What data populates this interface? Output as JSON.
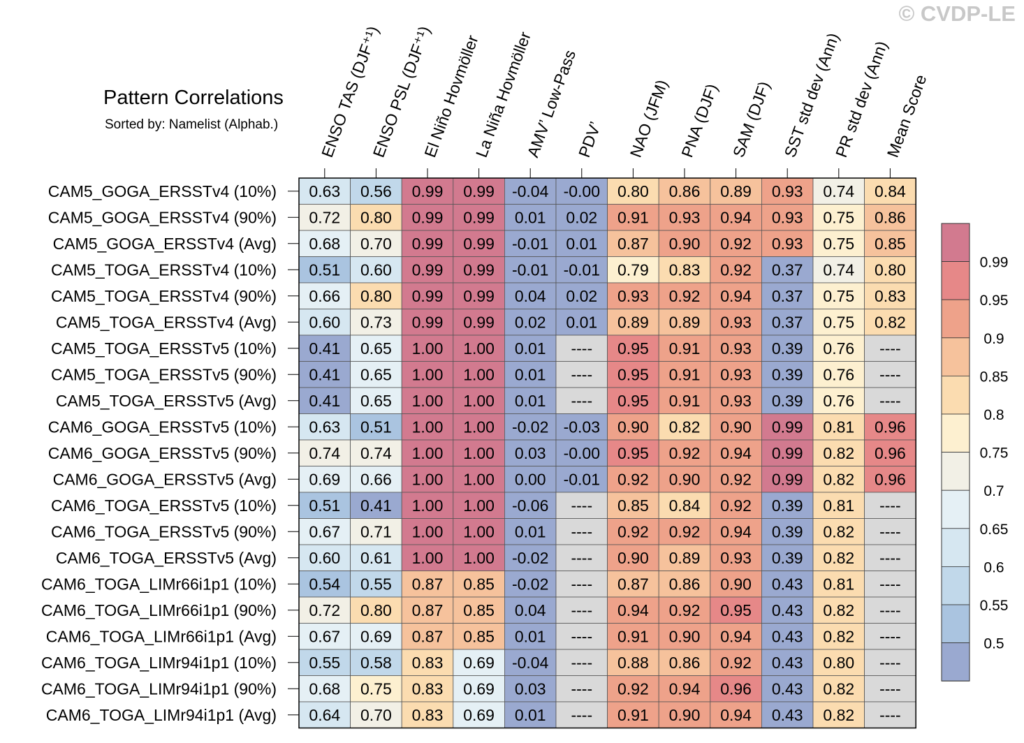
{
  "watermark": "© CVDP-LE",
  "chart_data": {
    "type": "heatmap",
    "title": "Pattern Correlations",
    "subtitle": "Sorted by: Namelist (Alphab.)",
    "columns": [
      "ENSO TAS (DJF⁺¹)",
      "ENSO PSL (DJF⁺¹)",
      "El Niño Hovmöller",
      "La Niña Hovmöller",
      "AMV’ Low-Pass",
      "PDV’",
      "NAO (JFM)",
      "PNA (DJF)",
      "SAM (DJF)",
      "SST std dev (Ann)",
      "PR std dev (Ann)",
      "Mean Score"
    ],
    "rows": [
      {
        "label": "CAM5_GOGA_ERSSTv4 (10%)",
        "values": [
          "0.63",
          "0.56",
          "0.99",
          "0.99",
          "-0.04",
          "-0.00",
          "0.80",
          "0.86",
          "0.89",
          "0.93",
          "0.74",
          "0.84"
        ]
      },
      {
        "label": "CAM5_GOGA_ERSSTv4 (90%)",
        "values": [
          "0.72",
          "0.80",
          "0.99",
          "0.99",
          "0.01",
          "0.02",
          "0.91",
          "0.93",
          "0.94",
          "0.93",
          "0.75",
          "0.86"
        ]
      },
      {
        "label": "CAM5_GOGA_ERSSTv4 (Avg)",
        "values": [
          "0.68",
          "0.70",
          "0.99",
          "0.99",
          "-0.01",
          "0.01",
          "0.87",
          "0.90",
          "0.92",
          "0.93",
          "0.75",
          "0.85"
        ]
      },
      {
        "label": "CAM5_TOGA_ERSSTv4 (10%)",
        "values": [
          "0.51",
          "0.60",
          "0.99",
          "0.99",
          "-0.01",
          "-0.01",
          "0.79",
          "0.83",
          "0.92",
          "0.37",
          "0.74",
          "0.80"
        ]
      },
      {
        "label": "CAM5_TOGA_ERSSTv4 (90%)",
        "values": [
          "0.66",
          "0.80",
          "0.99",
          "0.99",
          "0.04",
          "0.02",
          "0.93",
          "0.92",
          "0.94",
          "0.37",
          "0.75",
          "0.83"
        ]
      },
      {
        "label": "CAM5_TOGA_ERSSTv4 (Avg)",
        "values": [
          "0.60",
          "0.73",
          "0.99",
          "0.99",
          "0.02",
          "0.01",
          "0.89",
          "0.89",
          "0.93",
          "0.37",
          "0.75",
          "0.82"
        ]
      },
      {
        "label": "CAM5_TOGA_ERSSTv5 (10%)",
        "values": [
          "0.41",
          "0.65",
          "1.00",
          "1.00",
          "0.01",
          "----",
          "0.95",
          "0.91",
          "0.93",
          "0.39",
          "0.76",
          "----"
        ]
      },
      {
        "label": "CAM5_TOGA_ERSSTv5 (90%)",
        "values": [
          "0.41",
          "0.65",
          "1.00",
          "1.00",
          "0.01",
          "----",
          "0.95",
          "0.91",
          "0.93",
          "0.39",
          "0.76",
          "----"
        ]
      },
      {
        "label": "CAM5_TOGA_ERSSTv5 (Avg)",
        "values": [
          "0.41",
          "0.65",
          "1.00",
          "1.00",
          "0.01",
          "----",
          "0.95",
          "0.91",
          "0.93",
          "0.39",
          "0.76",
          "----"
        ]
      },
      {
        "label": "CAM6_GOGA_ERSSTv5 (10%)",
        "values": [
          "0.63",
          "0.51",
          "1.00",
          "1.00",
          "-0.02",
          "-0.03",
          "0.90",
          "0.82",
          "0.90",
          "0.99",
          "0.81",
          "0.96"
        ]
      },
      {
        "label": "CAM6_GOGA_ERSSTv5 (90%)",
        "values": [
          "0.74",
          "0.74",
          "1.00",
          "1.00",
          "0.03",
          "-0.00",
          "0.95",
          "0.92",
          "0.94",
          "0.99",
          "0.82",
          "0.96"
        ]
      },
      {
        "label": "CAM6_GOGA_ERSSTv5 (Avg)",
        "values": [
          "0.69",
          "0.66",
          "1.00",
          "1.00",
          "0.00",
          "-0.01",
          "0.92",
          "0.90",
          "0.92",
          "0.99",
          "0.82",
          "0.96"
        ]
      },
      {
        "label": "CAM6_TOGA_ERSSTv5 (10%)",
        "values": [
          "0.51",
          "0.41",
          "1.00",
          "1.00",
          "-0.06",
          "----",
          "0.85",
          "0.84",
          "0.92",
          "0.39",
          "0.81",
          "----"
        ]
      },
      {
        "label": "CAM6_TOGA_ERSSTv5 (90%)",
        "values": [
          "0.67",
          "0.71",
          "1.00",
          "1.00",
          "0.01",
          "----",
          "0.92",
          "0.92",
          "0.94",
          "0.39",
          "0.82",
          "----"
        ]
      },
      {
        "label": "CAM6_TOGA_ERSSTv5 (Avg)",
        "values": [
          "0.60",
          "0.61",
          "1.00",
          "1.00",
          "-0.02",
          "----",
          "0.90",
          "0.89",
          "0.93",
          "0.39",
          "0.82",
          "----"
        ]
      },
      {
        "label": "CAM6_TOGA_LIMr66i1p1 (10%)",
        "values": [
          "0.54",
          "0.55",
          "0.87",
          "0.85",
          "-0.02",
          "----",
          "0.87",
          "0.86",
          "0.90",
          "0.43",
          "0.81",
          "----"
        ]
      },
      {
        "label": "CAM6_TOGA_LIMr66i1p1 (90%)",
        "values": [
          "0.72",
          "0.80",
          "0.87",
          "0.85",
          "0.04",
          "----",
          "0.94",
          "0.92",
          "0.95",
          "0.43",
          "0.82",
          "----"
        ]
      },
      {
        "label": "CAM6_TOGA_LIMr66i1p1 (Avg)",
        "values": [
          "0.67",
          "0.69",
          "0.87",
          "0.85",
          "0.01",
          "----",
          "0.91",
          "0.90",
          "0.94",
          "0.43",
          "0.82",
          "----"
        ]
      },
      {
        "label": "CAM6_TOGA_LIMr94i1p1 (10%)",
        "values": [
          "0.55",
          "0.58",
          "0.83",
          "0.69",
          "-0.04",
          "----",
          "0.88",
          "0.86",
          "0.92",
          "0.43",
          "0.80",
          "----"
        ]
      },
      {
        "label": "CAM6_TOGA_LIMr94i1p1 (90%)",
        "values": [
          "0.68",
          "0.75",
          "0.83",
          "0.69",
          "0.03",
          "----",
          "0.92",
          "0.94",
          "0.96",
          "0.43",
          "0.82",
          "----"
        ]
      },
      {
        "label": "CAM6_TOGA_LIMr94i1p1 (Avg)",
        "values": [
          "0.64",
          "0.70",
          "0.83",
          "0.69",
          "0.01",
          "----",
          "0.91",
          "0.90",
          "0.94",
          "0.43",
          "0.82",
          "----"
        ]
      }
    ],
    "missing_value": "----",
    "colorbar": {
      "labels": [
        "0.99",
        "0.95",
        "0.9",
        "0.85",
        "0.8",
        "0.75",
        "0.7",
        "0.65",
        "0.6",
        "0.55",
        "0.5"
      ],
      "levels": [
        0.5,
        0.55,
        0.6,
        0.65,
        0.7,
        0.75,
        0.8,
        0.85,
        0.9,
        0.95,
        0.99
      ],
      "colors": [
        "#9aa9d0",
        "#aac4e0",
        "#c1d8ea",
        "#d6e7f1",
        "#e5f0f5",
        "#f2f0e6",
        "#fdf0d0",
        "#fbdcb0",
        "#f6c29c",
        "#eea28a",
        "#e68888",
        "#d27a8f"
      ],
      "missing_color": "#d9d9d9"
    }
  }
}
